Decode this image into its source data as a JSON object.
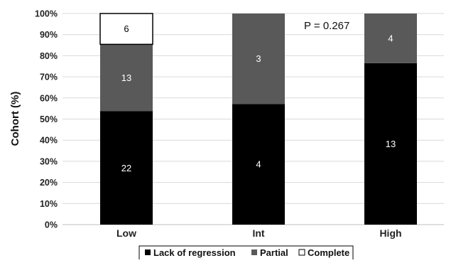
{
  "chart_data": {
    "type": "bar",
    "stacked": true,
    "normalized": true,
    "categories": [
      "Low",
      "Int",
      "High"
    ],
    "series": [
      {
        "name": "Lack of regression",
        "color": "#000000",
        "counts": [
          22,
          4,
          13
        ],
        "percent": [
          53.7,
          57.1,
          76.5
        ],
        "label_color": "#ffffff"
      },
      {
        "name": "Partial",
        "color": "#595959",
        "counts": [
          13,
          3,
          4
        ],
        "percent": [
          31.7,
          42.9,
          23.5
        ],
        "label_color": "#ffffff"
      },
      {
        "name": "Complete",
        "color": "#ffffff",
        "counts": [
          6,
          null,
          null
        ],
        "percent": [
          14.6,
          0,
          0
        ],
        "label_color": "#000000"
      }
    ],
    "ylabel": "Cohort (%)",
    "xlabel": "",
    "ylim": [
      0,
      100
    ],
    "yticks": [
      "0%",
      "10%",
      "20%",
      "30%",
      "40%",
      "50%",
      "60%",
      "70%",
      "80%",
      "90%",
      "100%"
    ],
    "annotation": "P = 0.267",
    "grid": true,
    "legend_position": "bottom"
  }
}
